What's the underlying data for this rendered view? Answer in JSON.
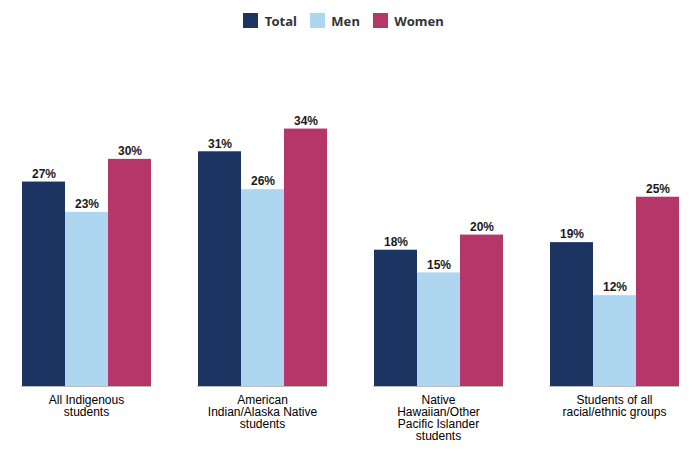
{
  "chart_data": {
    "type": "bar",
    "categories": [
      "All Indigenous\nstudents",
      "American\nIndian/Alaska Native\nstudents",
      "Native\nHawaiian/Other\nPacific Islander\nstudents",
      "Students of all\nracial/ethnic groups"
    ],
    "series": [
      {
        "name": "Total",
        "color": "#1c3461",
        "values": [
          27,
          31,
          18,
          19
        ],
        "value_labels": [
          "27%",
          "31%",
          "18%",
          "19%"
        ]
      },
      {
        "name": "Men",
        "color": "#aed6f1",
        "values": [
          23,
          26,
          15,
          12
        ],
        "value_labels": [
          "23%",
          "26%",
          "15%",
          "12%"
        ]
      },
      {
        "name": "Women",
        "color": "#b5376a",
        "values": [
          30,
          34,
          20,
          25
        ],
        "value_labels": [
          "30%",
          "34%",
          "20%",
          "25%"
        ]
      }
    ],
    "ylim": [
      0,
      42
    ],
    "data_labels": true,
    "legend": "top",
    "grid": false,
    "tick_labels": "x"
  }
}
